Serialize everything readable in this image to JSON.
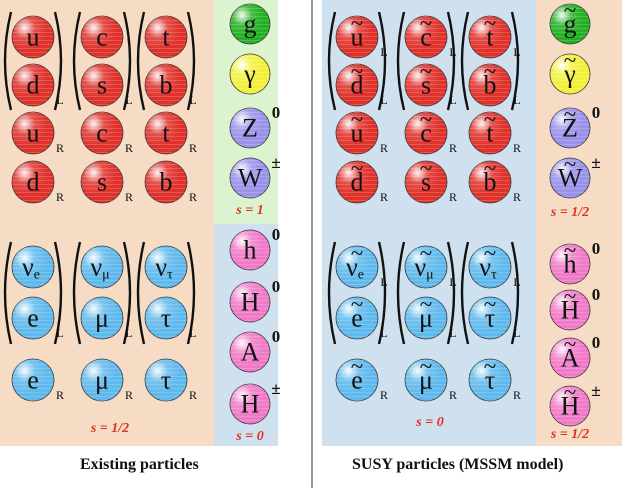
{
  "colors": {
    "peach": "#f6dcc4",
    "blue_panel": "#cfe0ef",
    "green_panel": "#dcf3cf",
    "quark": "#e0312b",
    "lepton": "#5fb9ec",
    "gluon": "#22b122",
    "photon": "#f3f03a",
    "weak": "#9a92ea",
    "higgs": "#f07ac8",
    "spin_text": "#e03020",
    "divider": "#7a7a7a"
  },
  "panels": {
    "existing": {
      "caption": "Existing particles",
      "spin_gauge": "s = 1",
      "spin_fermion": "s = 1/2",
      "spin_higgs": "s = 0"
    },
    "susy": {
      "caption": "SUSY particles (MSSM model)",
      "spin_gaugino": "s = 1/2",
      "spin_sfermion": "s = 0",
      "spin_higgsino": "s = 1/2"
    }
  },
  "quarks": {
    "doublets": [
      {
        "up": "u",
        "down": "d"
      },
      {
        "up": "c",
        "down": "s"
      },
      {
        "up": "t",
        "down": "b"
      }
    ],
    "doublet_subscript": "L",
    "right_up": [
      "u",
      "c",
      "t"
    ],
    "right_down": [
      "d",
      "s",
      "b"
    ],
    "right_subscript": "R"
  },
  "leptons": {
    "doublets": [
      {
        "up": "ν",
        "up_sub": "e",
        "down": "e"
      },
      {
        "up": "ν",
        "up_sub": "μ",
        "down": "μ"
      },
      {
        "up": "ν",
        "up_sub": "τ",
        "down": "τ"
      }
    ],
    "doublet_subscript": "L",
    "right": [
      "e",
      "μ",
      "τ"
    ],
    "right_subscript": "R"
  },
  "gauge_bosons": [
    {
      "symbol": "g",
      "sup": "",
      "kind": "gluon"
    },
    {
      "symbol": "γ",
      "sup": "",
      "kind": "photon"
    },
    {
      "symbol": "Z",
      "sup": "0",
      "kind": "weak"
    },
    {
      "symbol": "W",
      "sup": "±",
      "kind": "weak"
    }
  ],
  "higgs_bosons": [
    {
      "symbol": "h",
      "sup": "0"
    },
    {
      "symbol": "H",
      "sup": "0"
    },
    {
      "symbol": "A",
      "sup": "0"
    },
    {
      "symbol": "H",
      "sup": "±"
    }
  ],
  "tilde": "~"
}
